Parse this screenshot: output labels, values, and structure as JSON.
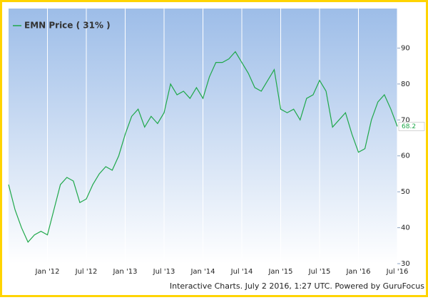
{
  "chart_data": {
    "type": "line",
    "series": [
      {
        "name": "EMN Price ( 31% )",
        "color": "#1fa84a",
        "values": [
          52,
          45,
          40,
          36,
          38,
          39,
          38,
          45,
          52,
          54,
          53,
          47,
          48,
          52,
          55,
          57,
          56,
          60,
          66,
          71,
          73,
          68,
          71,
          69,
          72,
          80,
          77,
          78,
          76,
          79,
          76,
          82,
          86,
          86,
          87,
          89,
          86,
          83,
          79,
          78,
          81,
          84,
          73,
          72,
          73,
          70,
          76,
          77,
          81,
          78,
          68,
          70,
          72,
          66,
          61,
          62,
          70,
          75,
          77,
          73,
          68.2
        ]
      }
    ],
    "x": [
      "2011-07",
      "2011-08",
      "2011-09",
      "2011-10",
      "2011-11",
      "2011-12",
      "2012-01",
      "2012-02",
      "2012-03",
      "2012-04",
      "2012-05",
      "2012-06",
      "2012-07",
      "2012-08",
      "2012-09",
      "2012-10",
      "2012-11",
      "2012-12",
      "2013-01",
      "2013-02",
      "2013-03",
      "2013-04",
      "2013-05",
      "2013-06",
      "2013-07",
      "2013-08",
      "2013-09",
      "2013-10",
      "2013-11",
      "2013-12",
      "2014-01",
      "2014-02",
      "2014-03",
      "2014-04",
      "2014-05",
      "2014-06",
      "2014-07",
      "2014-08",
      "2014-09",
      "2014-10",
      "2014-11",
      "2014-12",
      "2015-01",
      "2015-02",
      "2015-03",
      "2015-04",
      "2015-05",
      "2015-06",
      "2015-07",
      "2015-08",
      "2015-09",
      "2015-10",
      "2015-11",
      "2015-12",
      "2016-01",
      "2016-02",
      "2016-03",
      "2016-04",
      "2016-05",
      "2016-06",
      "2016-07"
    ],
    "xlim": [
      "2011-07",
      "2016-07"
    ],
    "xticks": [
      {
        "value": "2012-01",
        "label": "Jan '12"
      },
      {
        "value": "2012-07",
        "label": "Jul '12"
      },
      {
        "value": "2013-01",
        "label": "Jan '13"
      },
      {
        "value": "2013-07",
        "label": "Jul '13"
      },
      {
        "value": "2014-01",
        "label": "Jan '14"
      },
      {
        "value": "2014-07",
        "label": "Jul '14"
      },
      {
        "value": "2015-01",
        "label": "Jan '15"
      },
      {
        "value": "2015-07",
        "label": "Jul '15"
      },
      {
        "value": "2016-01",
        "label": "Jan '16"
      },
      {
        "value": "2016-07",
        "label": "Jul '16"
      }
    ],
    "ylim": [
      30,
      101
    ],
    "yticks": [
      30,
      40,
      50,
      60,
      70,
      80,
      90
    ],
    "grid": "x",
    "legend": "top-left",
    "credit": "Interactive Charts. July 2 2016, 1:27 UTC. Powered by GuruFocus"
  }
}
